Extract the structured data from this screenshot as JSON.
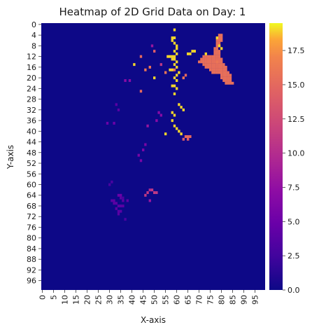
{
  "chart_data": {
    "type": "heatmap",
    "title": "Heatmap of 2D Grid Data on Day: 1",
    "xlabel": "X-axis",
    "ylabel": "Y-axis",
    "grid_size": [
      100,
      100
    ],
    "x_ticks": [
      "0",
      "5",
      "10",
      "15",
      "20",
      "25",
      "30",
      "35",
      "40",
      "45",
      "50",
      "55",
      "60",
      "65",
      "70",
      "75",
      "80",
      "85",
      "90",
      "95"
    ],
    "y_ticks": [
      "0",
      "4",
      "8",
      "12",
      "16",
      "20",
      "24",
      "28",
      "32",
      "36",
      "40",
      "44",
      "48",
      "52",
      "56",
      "60",
      "64",
      "68",
      "72",
      "76",
      "80",
      "84",
      "88",
      "92",
      "96"
    ],
    "colorbar": {
      "ticks": [
        "0.0",
        "2.5",
        "5.0",
        "7.5",
        "10.0",
        "12.5",
        "15.0",
        "17.5"
      ],
      "range": [
        0,
        19.5
      ],
      "colormap": "plasma"
    },
    "background_value": 0,
    "cells": [
      [
        59,
        2,
        19
      ],
      [
        58,
        5,
        19
      ],
      [
        59,
        5,
        19
      ],
      [
        58,
        6,
        19
      ],
      [
        59,
        7,
        19
      ],
      [
        60,
        8,
        19
      ],
      [
        60,
        9,
        19
      ],
      [
        59,
        10,
        19
      ],
      [
        60,
        11,
        19
      ],
      [
        57,
        12,
        19
      ],
      [
        58,
        12,
        19
      ],
      [
        59,
        12,
        19
      ],
      [
        56,
        12,
        19
      ],
      [
        58,
        13,
        19
      ],
      [
        59,
        13,
        19
      ],
      [
        60,
        14,
        19
      ],
      [
        59,
        15,
        19
      ],
      [
        60,
        16,
        19
      ],
      [
        57,
        17,
        19
      ],
      [
        58,
        17,
        19
      ],
      [
        61,
        18,
        19
      ],
      [
        60,
        19,
        19
      ],
      [
        59,
        20,
        19
      ],
      [
        60,
        21,
        19
      ],
      [
        58,
        23,
        19
      ],
      [
        59,
        23,
        19
      ],
      [
        60,
        24,
        19
      ],
      [
        59,
        26,
        19
      ],
      [
        61,
        30,
        19
      ],
      [
        62,
        31,
        19
      ],
      [
        63,
        32,
        19
      ],
      [
        58,
        33,
        19
      ],
      [
        59,
        34,
        19
      ],
      [
        58,
        36,
        19
      ],
      [
        59,
        38,
        19
      ],
      [
        60,
        39,
        19
      ],
      [
        61,
        40,
        19
      ],
      [
        62,
        41,
        19
      ],
      [
        55,
        41,
        19
      ],
      [
        65,
        11,
        19
      ],
      [
        66,
        11,
        19
      ],
      [
        67,
        10,
        19
      ],
      [
        68,
        10,
        19
      ],
      [
        41,
        15,
        19
      ],
      [
        50,
        20,
        19
      ],
      [
        55,
        18,
        16
      ],
      [
        59,
        17,
        16
      ],
      [
        63,
        20,
        16
      ],
      [
        64,
        19,
        15
      ],
      [
        48,
        16,
        16
      ],
      [
        50,
        10,
        14
      ],
      [
        44,
        12,
        15
      ],
      [
        46,
        17,
        16
      ],
      [
        44,
        25,
        15
      ],
      [
        64,
        42,
        15
      ],
      [
        65,
        42,
        15
      ],
      [
        66,
        42,
        15
      ],
      [
        63,
        43,
        14
      ],
      [
        65,
        43,
        14
      ],
      [
        49,
        8,
        8
      ],
      [
        53,
        15,
        11
      ],
      [
        37,
        21,
        7
      ],
      [
        39,
        21,
        7
      ],
      [
        52,
        33,
        7
      ],
      [
        53,
        34,
        7
      ],
      [
        51,
        36,
        7
      ],
      [
        47,
        38,
        8
      ],
      [
        43,
        49,
        6
      ],
      [
        45,
        47,
        6
      ],
      [
        46,
        45,
        6
      ],
      [
        44,
        51,
        6
      ],
      [
        47,
        63,
        11
      ],
      [
        48,
        62,
        10
      ],
      [
        49,
        62,
        11
      ],
      [
        50,
        63,
        11
      ],
      [
        51,
        63,
        11
      ],
      [
        46,
        64,
        11
      ],
      [
        48,
        66,
        8
      ],
      [
        34,
        64,
        5
      ],
      [
        35,
        64,
        5
      ],
      [
        35,
        65,
        4
      ],
      [
        31,
        66,
        4
      ],
      [
        32,
        66,
        4
      ],
      [
        32,
        67,
        4
      ],
      [
        33,
        67,
        4
      ],
      [
        34,
        68,
        4
      ],
      [
        35,
        68,
        4
      ],
      [
        33,
        69,
        4
      ],
      [
        34,
        70,
        4
      ],
      [
        34,
        71,
        4
      ],
      [
        35,
        70,
        4
      ],
      [
        36,
        68,
        4
      ],
      [
        36,
        66,
        4
      ],
      [
        37,
        73,
        3
      ],
      [
        30,
        60,
        3
      ],
      [
        31,
        59,
        3
      ],
      [
        34,
        32,
        4
      ],
      [
        32,
        37,
        5
      ],
      [
        29,
        37,
        5
      ],
      [
        33,
        30,
        4
      ],
      [
        36,
        65,
        3
      ],
      [
        38,
        66,
        4
      ]
    ],
    "shape_cells": [
      [
        79,
        4
      ],
      [
        80,
        4
      ],
      [
        79,
        5
      ],
      [
        80,
        5
      ],
      [
        78,
        6
      ],
      [
        79,
        6
      ],
      [
        80,
        6
      ],
      [
        78,
        7
      ],
      [
        79,
        7
      ],
      [
        78,
        8
      ],
      [
        79,
        8
      ],
      [
        77,
        9
      ],
      [
        78,
        9
      ],
      [
        77,
        10
      ],
      [
        78,
        10
      ],
      [
        79,
        10
      ],
      [
        77,
        11
      ],
      [
        78,
        11
      ],
      [
        79,
        11
      ],
      [
        72,
        12
      ],
      [
        73,
        12
      ],
      [
        74,
        12
      ],
      [
        75,
        12
      ],
      [
        76,
        12
      ],
      [
        77,
        12
      ],
      [
        78,
        12
      ],
      [
        79,
        12
      ],
      [
        71,
        13
      ],
      [
        72,
        13
      ],
      [
        73,
        13
      ],
      [
        74,
        13
      ],
      [
        75,
        13
      ],
      [
        76,
        13
      ],
      [
        77,
        13
      ],
      [
        78,
        13
      ],
      [
        79,
        13
      ],
      [
        80,
        13
      ],
      [
        70,
        14
      ],
      [
        71,
        14
      ],
      [
        72,
        14
      ],
      [
        73,
        14
      ],
      [
        74,
        14
      ],
      [
        75,
        14
      ],
      [
        76,
        14
      ],
      [
        77,
        14
      ],
      [
        78,
        14
      ],
      [
        79,
        14
      ],
      [
        80,
        14
      ],
      [
        72,
        15
      ],
      [
        73,
        15
      ],
      [
        74,
        15
      ],
      [
        75,
        15
      ],
      [
        76,
        15
      ],
      [
        77,
        15
      ],
      [
        78,
        15
      ],
      [
        79,
        15
      ],
      [
        80,
        15
      ],
      [
        81,
        15
      ],
      [
        73,
        16
      ],
      [
        74,
        16
      ],
      [
        75,
        16
      ],
      [
        76,
        16
      ],
      [
        77,
        16
      ],
      [
        78,
        16
      ],
      [
        79,
        16
      ],
      [
        80,
        16
      ],
      [
        81,
        16
      ],
      [
        82,
        16
      ],
      [
        75,
        17
      ],
      [
        76,
        17
      ],
      [
        77,
        17
      ],
      [
        78,
        17
      ],
      [
        79,
        17
      ],
      [
        80,
        17
      ],
      [
        81,
        17
      ],
      [
        82,
        17
      ],
      [
        76,
        18
      ],
      [
        77,
        18
      ],
      [
        78,
        18
      ],
      [
        79,
        18
      ],
      [
        80,
        18
      ],
      [
        81,
        18
      ],
      [
        82,
        18
      ],
      [
        83,
        18
      ],
      [
        80,
        19
      ],
      [
        81,
        19
      ],
      [
        82,
        19
      ],
      [
        83,
        19
      ],
      [
        84,
        19
      ],
      [
        80,
        20
      ],
      [
        81,
        20
      ],
      [
        82,
        20
      ],
      [
        83,
        20
      ],
      [
        84,
        20
      ],
      [
        81,
        21
      ],
      [
        82,
        21
      ],
      [
        83,
        21
      ],
      [
        84,
        21
      ],
      [
        82,
        22
      ],
      [
        83,
        22
      ],
      [
        84,
        22
      ],
      [
        85,
        22
      ]
    ],
    "shape_value": 15.5,
    "shape_highlight": [
      [
        78,
        5,
        19
      ],
      [
        80,
        9,
        19
      ],
      [
        79,
        8,
        19
      ],
      [
        73,
        11,
        19
      ],
      [
        78,
        14,
        16
      ]
    ]
  }
}
